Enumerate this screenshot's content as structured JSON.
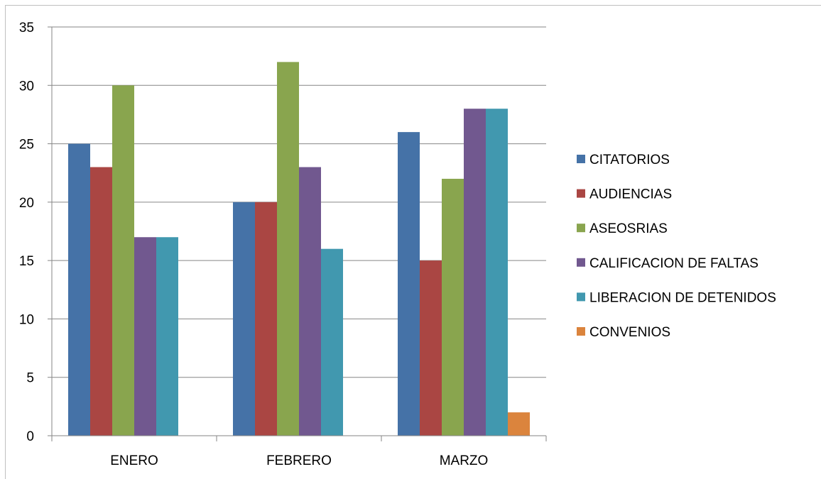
{
  "chart_data": {
    "type": "bar",
    "title": "",
    "xlabel": "",
    "ylabel": "",
    "categories": [
      "ENERO",
      "FEBRERO",
      "MARZO"
    ],
    "ylim": [
      0,
      35
    ],
    "yticks": [
      0,
      5,
      10,
      15,
      20,
      25,
      30,
      35
    ],
    "grid": true,
    "legend_position": "right",
    "series": [
      {
        "name": "CITATORIOS",
        "color": "#4572A7",
        "values": [
          25,
          20,
          26
        ]
      },
      {
        "name": "AUDIENCIAS",
        "color": "#AA4643",
        "values": [
          23,
          20,
          15
        ]
      },
      {
        "name": "ASEOSRIAS",
        "color": "#89A54E",
        "values": [
          30,
          32,
          22
        ]
      },
      {
        "name": "CALIFICACION DE FALTAS",
        "color": "#71588F",
        "values": [
          17,
          23,
          28
        ]
      },
      {
        "name": "LIBERACION DE DETENIDOS",
        "color": "#4198AF",
        "values": [
          17,
          16,
          28
        ]
      },
      {
        "name": "CONVENIOS",
        "color": "#DB843D",
        "values": [
          0,
          0,
          2
        ]
      }
    ]
  }
}
